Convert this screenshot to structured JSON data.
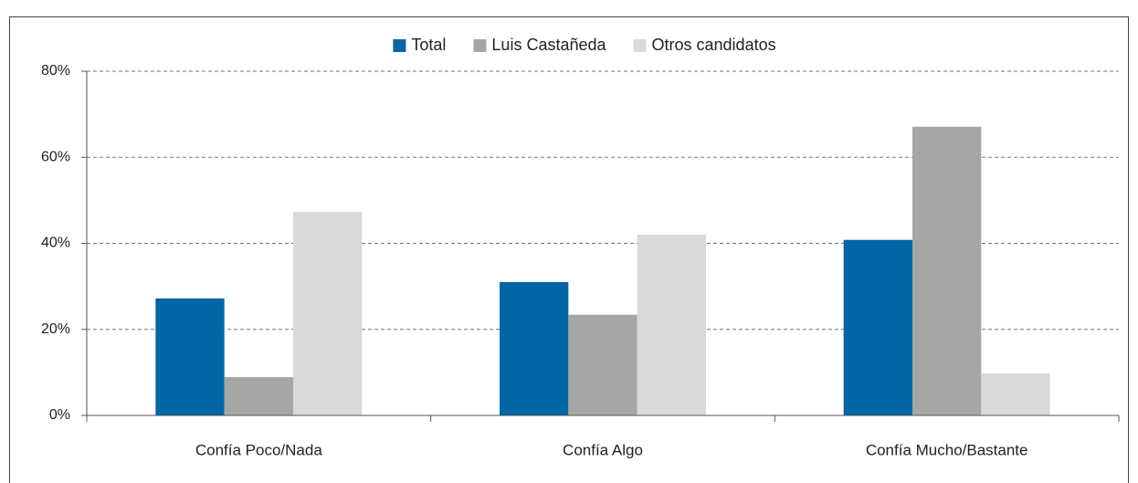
{
  "chart_data": {
    "type": "bar",
    "categories": [
      "Confía Poco/Nada",
      "Confía Algo",
      "Confía Mucho/Bastante"
    ],
    "series": [
      {
        "name": "Total",
        "color": "#0066a6",
        "values": [
          27.2,
          31.0,
          40.8
        ]
      },
      {
        "name": "Luis Castañeda",
        "color": "#a6a6a6",
        "values": [
          8.9,
          23.4,
          67.1
        ]
      },
      {
        "name": "Otros candidatos",
        "color": "#d9d9d9",
        "values": [
          47.3,
          42.0,
          9.8
        ]
      }
    ],
    "ylim": [
      0,
      80
    ],
    "yticks": [
      {
        "value": 0,
        "label": "0%"
      },
      {
        "value": 20,
        "label": "20%"
      },
      {
        "value": 40,
        "label": "40%"
      },
      {
        "value": 60,
        "label": "60%"
      },
      {
        "value": 80,
        "label": "80%"
      }
    ],
    "grid": true,
    "legend": "top"
  }
}
